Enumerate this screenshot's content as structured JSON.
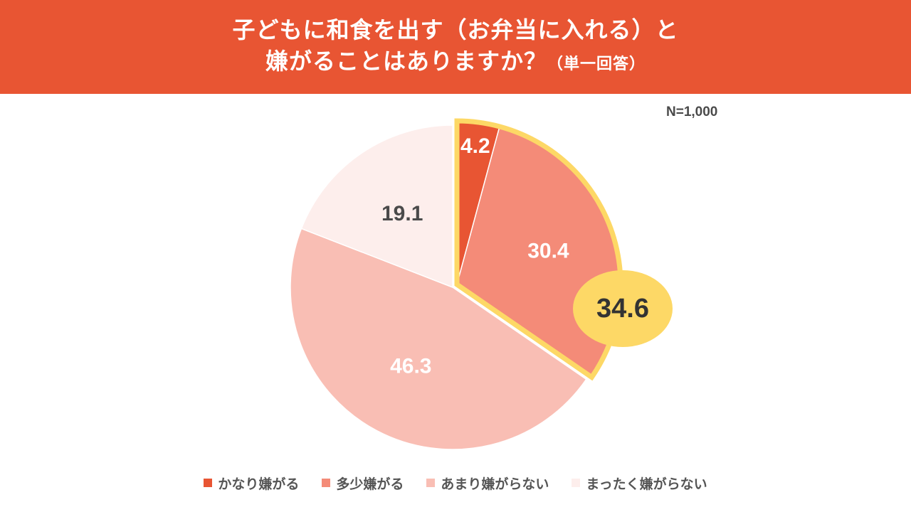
{
  "header": {
    "title_line1": "子どもに和食を出す（お弁当に入れる）と",
    "title_line2": "嫌がることはありますか？",
    "title_note": "（単一回答）"
  },
  "sample_size": "N=1,000",
  "colors": {
    "header_bg": "#e85533",
    "highlight": "#fdd866"
  },
  "chart_data": {
    "type": "pie",
    "categories": [
      "かなり嫌がる",
      "多少嫌がる",
      "あまり嫌がらない",
      "まったく嫌がらない"
    ],
    "values": [
      4.2,
      30.4,
      46.3,
      19.1
    ],
    "data_labels": [
      "4.2",
      "30.4",
      "46.3",
      "19.1"
    ],
    "colors": [
      "#e85533",
      "#f48b78",
      "#f9beb4",
      "#fdeeec"
    ],
    "label_colors": [
      "#ffffff",
      "#ffffff",
      "#ffffff",
      "#4a4a4a"
    ],
    "start_angle_deg": 0,
    "direction": "clockwise",
    "highlight": {
      "categories": [
        "かなり嫌がる",
        "多少嫌がる"
      ],
      "value": 34.6,
      "label": "34.6"
    },
    "legend_position": "bottom",
    "title": "",
    "xlabel": "",
    "ylabel": ""
  }
}
